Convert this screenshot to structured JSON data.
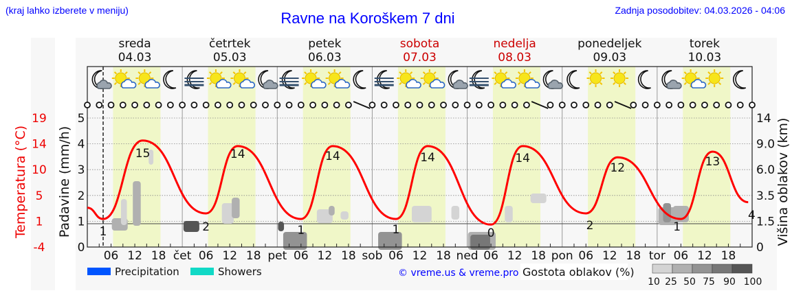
{
  "header": {
    "region_hint": "(kraj lahko izberete v meniju)",
    "title": "Ravne na Koroškem 7 dni",
    "last_update": "Zadnja posodobitev: 04.03.2026 - 04:06"
  },
  "days": [
    {
      "name": "sreda",
      "date": "04.03",
      "weekend": false,
      "abbr": ""
    },
    {
      "name": "četrtek",
      "date": "05.03",
      "weekend": false,
      "abbr": "čet"
    },
    {
      "name": "petek",
      "date": "06.03",
      "weekend": false,
      "abbr": "pet"
    },
    {
      "name": "sobota",
      "date": "07.03",
      "weekend": true,
      "abbr": "sob"
    },
    {
      "name": "nedelja",
      "date": "08.03",
      "weekend": true,
      "abbr": "ned"
    },
    {
      "name": "ponedeljek",
      "date": "09.03",
      "weekend": false,
      "abbr": "pon"
    },
    {
      "name": "torek",
      "date": "10.03",
      "weekend": false,
      "abbr": "tor"
    }
  ],
  "weather_icons": [
    [
      "moon-cloud",
      "sun-cloud",
      "sun-cloud",
      "moon"
    ],
    [
      "moon-fog",
      "sun-cloud",
      "sun-cloud",
      "moon-cloud"
    ],
    [
      "moon-fog",
      "sun-cloud",
      "sun-cloud",
      "moon"
    ],
    [
      "moon-fog",
      "sun-cloud",
      "sun-cloud",
      "moon-cloud"
    ],
    [
      "moon-fog",
      "sun-cloud",
      "sun-cloud",
      "moon-cloud"
    ],
    [
      "moon",
      "sun",
      "sun",
      "moon"
    ],
    [
      "moon-cloud",
      "sun-cloud",
      "sun",
      "moon"
    ]
  ],
  "axes": {
    "left_temp_label": "Temperatura (°C)",
    "left_temp_ticks": [
      "19",
      "14",
      "10",
      "5",
      "1",
      "-4"
    ],
    "left_precip_label": "Padavine (mm/h)",
    "left_precip_ticks": [
      "5",
      "4",
      "3",
      "2",
      "1",
      "0"
    ],
    "right_label": "Višina oblakov (km)",
    "right_ticks": [
      "14",
      "9.0",
      "6.0",
      "3.5",
      "1.5",
      "0"
    ],
    "hour_ticks": [
      "06",
      "12",
      "18"
    ]
  },
  "legend": {
    "precipitation_label": "Precipitation",
    "precipitation_color": "#0055ff",
    "showers_label": "Showers",
    "showers_color": "#11d9c6",
    "copyright": "© vreme.us & vreme.pro",
    "cloud_density_label": "Gostota oblakov (%)",
    "cloud_density_ticks": [
      "10",
      "25",
      "50",
      "75",
      "90",
      "100"
    ],
    "cloud_density_colors": [
      "#d4d4d4",
      "#b0b0b0",
      "#939393",
      "#777777",
      "#555555"
    ]
  },
  "colors": {
    "temperature_line": "#ff0000",
    "daylight_band": "#f0f7c8",
    "weekend_text": "#cc0000",
    "title_blue": "#0000ff"
  },
  "chart_data": {
    "type": "line",
    "title": "Ravne na Koroškem 7 dni",
    "xlabel": "",
    "ylabel": "Temperatura (°C)",
    "ylim": [
      -4,
      19
    ],
    "secondary_axes": {
      "precipitation_mm_h": [
        0,
        5
      ],
      "cloud_height_km": [
        0,
        14
      ]
    },
    "series": [
      {
        "name": "Temperatura",
        "color": "#ff0000",
        "points": [
          {
            "day": "04.03",
            "hour": 0,
            "value": 3
          },
          {
            "day": "04.03",
            "hour": 4,
            "value": 1
          },
          {
            "day": "04.03",
            "hour": 14,
            "value": 15
          },
          {
            "day": "05.03",
            "hour": 6,
            "value": 2
          },
          {
            "day": "05.03",
            "hour": 14,
            "value": 14
          },
          {
            "day": "06.03",
            "hour": 6,
            "value": 1
          },
          {
            "day": "06.03",
            "hour": 14,
            "value": 14
          },
          {
            "day": "07.03",
            "hour": 6,
            "value": 1
          },
          {
            "day": "07.03",
            "hour": 14,
            "value": 14
          },
          {
            "day": "08.03",
            "hour": 6,
            "value": 0
          },
          {
            "day": "08.03",
            "hour": 14,
            "value": 14
          },
          {
            "day": "09.03",
            "hour": 6,
            "value": 2
          },
          {
            "day": "09.03",
            "hour": 14,
            "value": 12
          },
          {
            "day": "10.03",
            "hour": 6,
            "value": 1
          },
          {
            "day": "10.03",
            "hour": 14,
            "value": 13
          },
          {
            "day": "10.03",
            "hour": 23,
            "value": 4
          }
        ]
      }
    ],
    "annotations": {
      "daily_min": [
        "1",
        "2",
        "1",
        "1",
        "0",
        "2",
        "1"
      ],
      "daily_max": [
        "15",
        "14",
        "14",
        "14",
        "14",
        "12",
        "13"
      ],
      "end_value": "4"
    },
    "legend": [
      "Precipitation",
      "Showers"
    ],
    "grid": true
  }
}
